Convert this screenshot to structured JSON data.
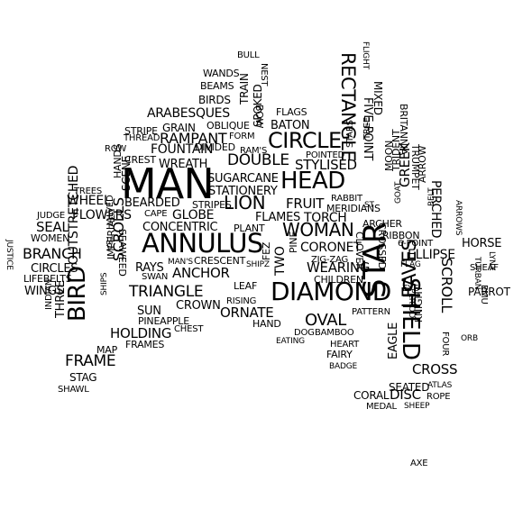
{
  "colors": {
    "teal": "#1f9a94",
    "purple": "#5a5aa8",
    "indigo": "#4a5db3",
    "sky": "#4aa3dc"
  },
  "words": [
    "BULL",
    "WANDS",
    "TRAIN",
    "BOW",
    "NEST",
    "BEAMS",
    "SPOKED",
    "FLIGHT",
    "BIRDS",
    "ARABESQUES",
    "GRAIN",
    "OBLIQUE",
    "FLAGS",
    "STRIPE",
    "THREAD",
    "RAMPANT",
    "FORM",
    "BATON",
    "ROW",
    "FOUNTAIN",
    "DIVIDED",
    "RAM'S",
    "CIRCLE",
    "RECTANGLE",
    "STARS",
    "TREE",
    "MIXED",
    "FIVE-POINT",
    "POINTED",
    "CREST",
    "WREATH",
    "DOUBLE",
    "HANDS",
    "SCENE",
    "MAN",
    "STYLISED",
    "HEAD",
    "SUGARCANE",
    "STATIONERY",
    "MOON",
    "TRIDENT",
    "BRITANNIA",
    "TRUMPET",
    "TREES",
    "WHEEL",
    "BEARDED",
    "STRIPES",
    "LION",
    "FRUIT",
    "RABBIT",
    "CAPE",
    "GLOBE",
    "ST",
    "GOAT",
    "GREEK",
    "ARROW",
    "PERCHED",
    "JUDGE",
    "FLOWERS",
    "TORCH",
    "MERIDIANS",
    "BELT",
    "ARROWS",
    "FLAMES",
    "SEAL",
    "HALVED",
    "CONCENTRIC",
    "PLANT",
    "WOMAN",
    "ARCHER",
    "CROSSED",
    "RIBBON",
    "WOMEN",
    "ANNULUS",
    "CORONET",
    "CLOVER",
    "6-POINT",
    "HORSE",
    "JUSTICE",
    "SEAWEED",
    "TEA",
    "BRANCH",
    "FEZ",
    "ELLIPSE",
    "ZIG-ZAG",
    "FLAG",
    "CIRCLES",
    "IMPERIAL",
    "RAYS",
    "MAN'S",
    "CRESCENT",
    "SHIPZ",
    "PINE",
    "WEARING",
    "LYNX",
    "TURBAN",
    "OUTSTRETCHED",
    "SCROLLS",
    "SWAN",
    "ANCHOR",
    "TWO",
    "CHILDREN",
    "SCROLL",
    "WINGS",
    "LIFEBELTS",
    "TRIANGLE",
    "LEAF",
    "EYE",
    "PARROT",
    "SHIPS",
    "DIAMOND",
    "EMU",
    "RISING",
    "PERIOD",
    "INDIAN",
    "THREE",
    "CROWN",
    "SHIELD",
    "SUN",
    "ORNATE",
    "PATTERN",
    "BIRD",
    "PINEAPPLE",
    "HAND",
    "OVAL",
    "LEAVES",
    "HOLDING",
    "CHEST",
    "KNIGHT",
    "FOUR",
    "ORB",
    "EATING",
    "DOG",
    "BAMBOO",
    "STAR",
    "FRAMES",
    "HEART",
    "MAP",
    "FAIRY",
    "EAGLE",
    "FRAME",
    "BADGE",
    "CROSS",
    "SEATED",
    "STAG",
    "ATLAS",
    "SHAWL",
    "CORAL",
    "DISC",
    "ROPE",
    "MEDAL",
    "SHEEP",
    "AXE",
    "SHEAF"
  ]
}
